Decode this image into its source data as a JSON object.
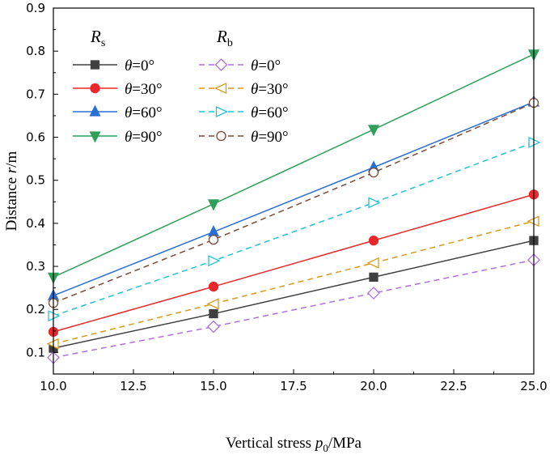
{
  "chart_data": {
    "type": "line",
    "title": "",
    "xlabel": "Vertical stress p0/MPa",
    "xlabel_parts": {
      "pre": "Vertical stress ",
      "var": "p",
      "sub": "0",
      "post": "/MPa"
    },
    "ylabel": "Distance r/m",
    "ylabel_parts": {
      "pre": "Distance ",
      "var": "r",
      "post": "/m"
    },
    "xlim": [
      10,
      25
    ],
    "ylim": [
      0.05,
      0.9
    ],
    "xticks": [
      "10.0",
      "12.5",
      "15.0",
      "17.5",
      "20.0",
      "22.5",
      "25.0"
    ],
    "yticks": [
      "0.1",
      "0.2",
      "0.3",
      "0.4",
      "0.5",
      "0.6",
      "0.7",
      "0.8",
      "0.9"
    ],
    "x": [
      10,
      15,
      20,
      25
    ],
    "legend": {
      "location": "top-left",
      "groups": [
        {
          "head": "R",
          "sub": "s"
        },
        {
          "head": "R",
          "sub": "b"
        }
      ]
    },
    "series": [
      {
        "name": "θ=0°",
        "group": "Rs",
        "var": "θ",
        "value_text": "=0°",
        "color": "#404040",
        "marker": "square",
        "dash": false,
        "values": [
          0.11,
          0.19,
          0.275,
          0.36
        ]
      },
      {
        "name": "θ=30°",
        "group": "Rs",
        "var": "θ",
        "value_text": "=30°",
        "color": "#e8282a",
        "marker": "circle",
        "dash": false,
        "values": [
          0.148,
          0.253,
          0.36,
          0.467
        ]
      },
      {
        "name": "θ=60°",
        "group": "Rs",
        "var": "θ",
        "value_text": "=60°",
        "color": "#2a6fd6",
        "marker": "triangle-up",
        "dash": false,
        "values": [
          0.232,
          0.38,
          0.53,
          0.682
        ]
      },
      {
        "name": "θ=90°",
        "group": "Rs",
        "var": "θ",
        "value_text": "=90°",
        "color": "#2fa05a",
        "marker": "triangle-down",
        "dash": false,
        "values": [
          0.275,
          0.445,
          0.618,
          0.793
        ]
      },
      {
        "name": "θ=0°",
        "group": "Rb",
        "var": "θ",
        "value_text": "=0°",
        "color": "#b070e0",
        "marker": "diamond-open",
        "dash": true,
        "values": [
          0.088,
          0.16,
          0.238,
          0.315
        ]
      },
      {
        "name": "θ=30°",
        "group": "Rb",
        "var": "θ",
        "value_text": "=30°",
        "color": "#d99a1e",
        "marker": "triangle-left-open",
        "dash": true,
        "values": [
          0.12,
          0.213,
          0.308,
          0.405
        ]
      },
      {
        "name": "θ=60°",
        "group": "Rb",
        "var": "θ",
        "value_text": "=60°",
        "color": "#22c3d6",
        "marker": "triangle-right-open",
        "dash": true,
        "values": [
          0.185,
          0.313,
          0.448,
          0.588
        ]
      },
      {
        "name": "θ=90°",
        "group": "Rb",
        "var": "θ",
        "value_text": "=90°",
        "color": "#7a4a3a",
        "marker": "circle-open",
        "dash": true,
        "values": [
          0.215,
          0.362,
          0.518,
          0.68
        ]
      }
    ]
  }
}
